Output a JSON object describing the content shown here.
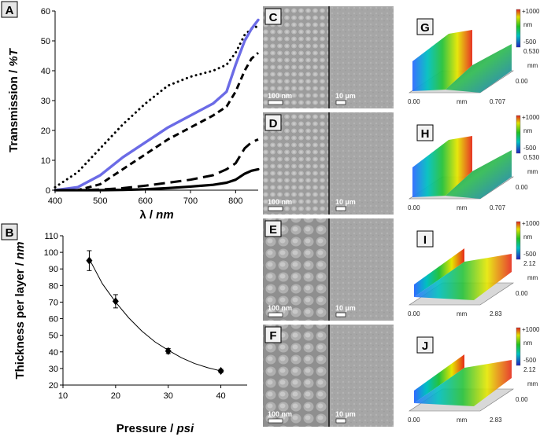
{
  "chart_data": [
    {
      "panel": "A",
      "type": "line",
      "xlabel": "λ / nm",
      "ylabel": "Transmission / %T",
      "xlim": [
        400,
        850
      ],
      "ylim": [
        0,
        60
      ],
      "x_ticks": [
        400,
        500,
        600,
        700,
        800
      ],
      "y_ticks": [
        0,
        10,
        20,
        30,
        40,
        50,
        60
      ],
      "series": [
        {
          "name": "dotted",
          "style": "dotted",
          "color": "#000000",
          "x": [
            400,
            450,
            500,
            550,
            600,
            650,
            700,
            750,
            780,
            800,
            820,
            835,
            850
          ],
          "y": [
            1,
            6,
            14,
            22,
            29,
            35,
            38,
            40,
            42,
            46,
            52,
            54,
            55
          ]
        },
        {
          "name": "blue",
          "style": "solid",
          "color": "#6b6be6",
          "x": [
            400,
            450,
            500,
            550,
            600,
            650,
            700,
            750,
            780,
            800,
            820,
            835,
            850
          ],
          "y": [
            0,
            1,
            5,
            11,
            16,
            21,
            25,
            29,
            33,
            42,
            50,
            54,
            57
          ]
        },
        {
          "name": "dashed-thick",
          "style": "dashed",
          "color": "#000000",
          "x": [
            400,
            450,
            500,
            550,
            600,
            650,
            700,
            750,
            780,
            800,
            820,
            835,
            850
          ],
          "y": [
            0,
            0,
            2,
            7,
            12,
            17,
            21,
            25,
            28,
            33,
            40,
            44,
            46
          ]
        },
        {
          "name": "dashed-long",
          "style": "longdash",
          "color": "#000000",
          "x": [
            400,
            450,
            500,
            550,
            600,
            650,
            700,
            750,
            780,
            800,
            820,
            835,
            850
          ],
          "y": [
            0,
            0,
            0.2,
            0.7,
            1.5,
            2.5,
            3.5,
            5,
            7,
            9,
            14,
            16,
            17
          ]
        },
        {
          "name": "solid-black",
          "style": "solid",
          "color": "#000000",
          "x": [
            400,
            450,
            500,
            550,
            600,
            650,
            700,
            750,
            780,
            800,
            820,
            835,
            850
          ],
          "y": [
            0,
            0,
            0,
            0.1,
            0.3,
            0.7,
            1.2,
            1.8,
            2.5,
            3.5,
            5.5,
            6.5,
            7
          ]
        }
      ]
    },
    {
      "panel": "B",
      "type": "scatter",
      "xlabel": "Pressure / psi",
      "ylabel": "Thickness per layer / nm",
      "xlim": [
        10,
        45
      ],
      "ylim": [
        20,
        110
      ],
      "x_ticks": [
        10,
        20,
        30,
        40
      ],
      "y_ticks": [
        20,
        30,
        40,
        50,
        60,
        70,
        80,
        90,
        100,
        110
      ],
      "points": [
        {
          "x": 15,
          "y": 95,
          "err": 6
        },
        {
          "x": 20,
          "y": 70.5,
          "err": 4
        },
        {
          "x": 30,
          "y": 40.5,
          "err": 1.5
        },
        {
          "x": 40,
          "y": 28.5,
          "err": 1
        }
      ],
      "fit": {
        "x": [
          15,
          17.5,
          20,
          22.5,
          25,
          27.5,
          30,
          32.5,
          35,
          37.5,
          40
        ],
        "y": [
          96,
          81,
          70,
          60.5,
          52.5,
          46,
          41,
          36.5,
          33,
          30.5,
          28.5
        ]
      }
    }
  ],
  "panels": {
    "A": "A",
    "B": "B",
    "C": "C",
    "D": "D",
    "E": "E",
    "F": "F",
    "G": "G",
    "H": "H",
    "I": "I",
    "J": "J"
  },
  "scale_bars": {
    "nano": "100 nm",
    "micro": "10 µm"
  },
  "profilometry": [
    {
      "label": "G",
      "zmax": "+1000",
      "zunit": "nm",
      "zmin": "-500",
      "y_max": "0.530",
      "y_min": "0.00",
      "y_unit": "mm",
      "x_min": "0.00",
      "x_unit": "mm",
      "x_max": "0.707"
    },
    {
      "label": "H",
      "zmax": "+1000",
      "zunit": "nm",
      "zmin": "-500",
      "y_max": "0.530",
      "y_min": "0.00",
      "y_unit": "mm",
      "x_min": "0.00",
      "x_unit": "mm",
      "x_max": "0.707"
    },
    {
      "label": "I",
      "zmax": "+1000",
      "zunit": "nm",
      "zmin": "-500",
      "y_max": "2.12",
      "y_min": "0.00",
      "y_unit": "mm",
      "x_min": "0.00",
      "x_unit": "mm",
      "x_max": "2.83"
    },
    {
      "label": "J",
      "zmax": "+1000",
      "zunit": "nm",
      "zmin": "-500",
      "y_max": "2.12",
      "y_min": "0.00",
      "y_unit": "mm",
      "x_min": "0.00",
      "x_unit": "mm",
      "x_max": "2.83"
    }
  ]
}
